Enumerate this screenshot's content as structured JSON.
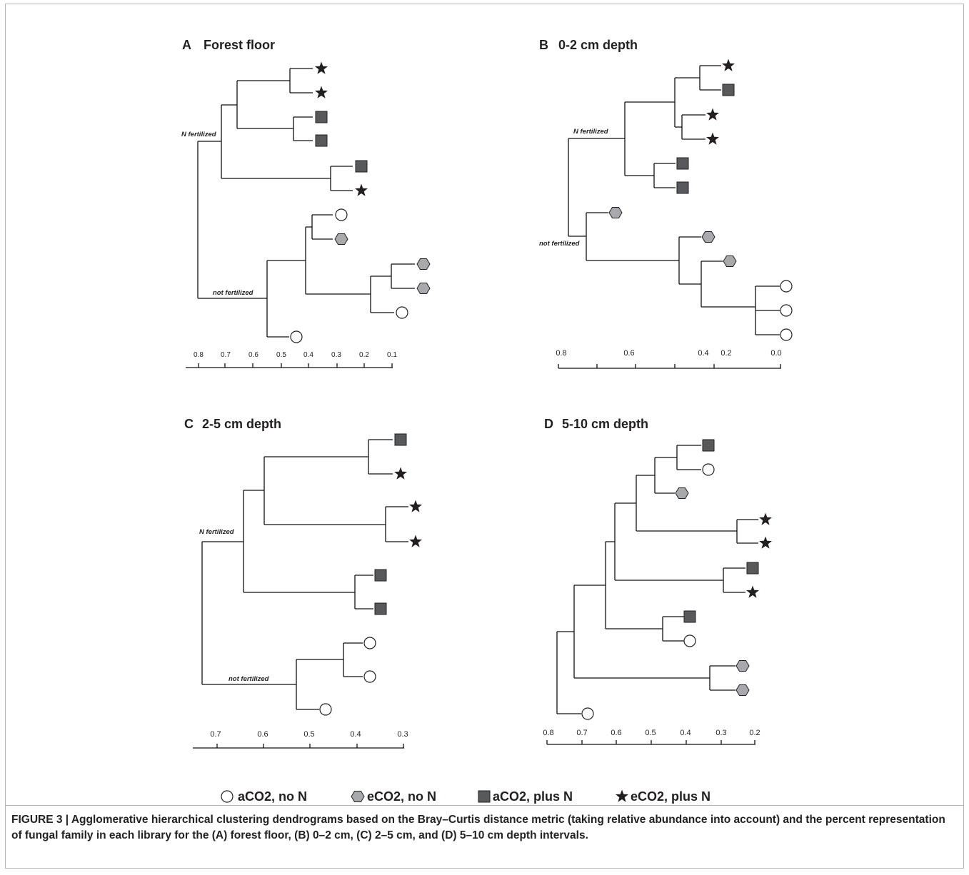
{
  "panels": [
    {
      "id": "A",
      "letter": "A",
      "title": "Forest floor",
      "group_labels": [
        "N fertilized",
        "not fertilized"
      ],
      "ticks": [
        "0.8",
        "0.7",
        "0.6",
        "0.5",
        "0.4",
        "0.3",
        "0.2",
        "0.1"
      ],
      "leaves": [
        "eCO2, plus N",
        "eCO2, plus N",
        "aCO2, plus N",
        "aCO2, plus N",
        "aCO2, plus N",
        "eCO2, plus N",
        "aCO2, no N",
        "eCO2, no N",
        "eCO2, no N",
        "eCO2, no N",
        "aCO2, no N",
        "aCO2, no N"
      ]
    },
    {
      "id": "B",
      "letter": "B",
      "title": "0-2 cm depth",
      "group_labels": [
        "N fertilized",
        "not fertilized"
      ],
      "ticks": [
        "0.8",
        "0.6",
        "0.4",
        "0.2",
        "0.0"
      ],
      "leaves": [
        "eCO2, plus N",
        "aCO2, plus N",
        "eCO2, plus N",
        "eCO2, plus N",
        "aCO2, plus N",
        "aCO2, plus N",
        "eCO2, no N",
        "eCO2, no N",
        "eCO2, no N",
        "aCO2, no N",
        "aCO2, no N",
        "aCO2, no N"
      ]
    },
    {
      "id": "C",
      "letter": "C",
      "title": "2-5 cm depth",
      "group_labels": [
        "N fertilized",
        "not fertilized"
      ],
      "ticks": [
        "0.7",
        "0.6",
        "0.5",
        "0.4",
        "0.3"
      ],
      "leaves": [
        "aCO2, plus N",
        "eCO2, plus N",
        "eCO2, plus N",
        "eCO2, plus N",
        "aCO2, plus N",
        "aCO2, plus N",
        "aCO2, no N",
        "aCO2, no N",
        "aCO2, no N"
      ]
    },
    {
      "id": "D",
      "letter": "D",
      "title": "5-10 cm depth",
      "group_labels": [],
      "ticks": [
        "0.8",
        "0.7",
        "0.6",
        "0.5",
        "0.4",
        "0.3",
        "0.2"
      ],
      "leaves": [
        "aCO2, plus N",
        "aCO2, no N",
        "eCO2, no N",
        "eCO2, plus N",
        "eCO2, plus N",
        "aCO2, plus N",
        "eCO2, plus N",
        "aCO2, plus N",
        "aCO2, no N",
        "eCO2, no N",
        "eCO2, no N",
        "aCO2, no N"
      ]
    }
  ],
  "legend": [
    {
      "label": "aCO2, no N",
      "icon": "circle-icon",
      "color": "#ffffff"
    },
    {
      "label": "eCO2, no N",
      "icon": "hexagon-icon",
      "color": "#a7a9ac"
    },
    {
      "label": "aCO2, plus N",
      "icon": "square-icon",
      "color": "#58595b"
    },
    {
      "label": "eCO2, plus N",
      "icon": "star-icon",
      "color": "#231f20"
    }
  ],
  "caption": "FIGURE 3 | Agglomerative hierarchical clustering dendrograms based on the Bray–Curtis distance metric (taking relative abundance into account) and the percent representation of fungal family in each library for the (A) forest floor, (B) 0–2 cm, (C) 2–5 cm, and (D) 5–10 cm depth intervals.",
  "colors": {
    "line": "#111111",
    "circle_fill": "#ffffff",
    "hexagon_fill": "#a7a9ac",
    "square_fill": "#58595b",
    "star_fill": "#231f20"
  }
}
